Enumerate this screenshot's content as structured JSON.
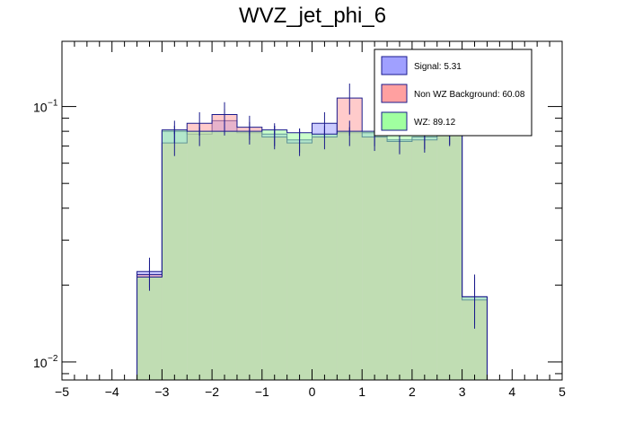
{
  "chart_data": {
    "type": "histogram",
    "title": "WVZ_jet_phi_6",
    "xlabel": "",
    "ylabel": "",
    "xlim": [
      -5,
      5
    ],
    "ylim": [
      0.0085,
      0.18
    ],
    "yscale": "log",
    "bin_edges": [
      -3.5,
      -3.0,
      -2.5,
      -2.0,
      -1.5,
      -1.0,
      -0.5,
      0.0,
      0.5,
      1.0,
      1.5,
      2.0,
      2.5,
      3.0,
      3.5
    ],
    "x_ticks": [
      -5,
      -4,
      -3,
      -2,
      -1,
      0,
      1,
      2,
      3,
      4,
      5
    ],
    "x_tick_labels": [
      "−5",
      "−4",
      "−3",
      "−2",
      "−1",
      "0",
      "1",
      "2",
      "3",
      "4",
      "5"
    ],
    "y_ticks": [
      {
        "value": 0.1,
        "base": "10",
        "exp": "−1"
      },
      {
        "value": 0.01,
        "base": "10",
        "exp": "−2"
      }
    ],
    "series": [
      {
        "name": "Signal",
        "legend_label": "Signal: 5.31",
        "color": "#a0a0ff",
        "edge": "#1818a0",
        "values": [
          0.0226,
          0.08,
          0.078,
          0.088,
          0.079,
          0.078,
          0.074,
          0.086,
          0.079,
          0.079,
          0.074,
          0.076,
          0.08,
          0.018
        ],
        "errors": [
          0.003,
          0.008,
          0.008,
          0.01,
          0.008,
          0.008,
          0.008,
          0.009,
          0.009,
          0.009,
          0.008,
          0.008,
          0.009,
          0.004
        ]
      },
      {
        "name": "Non WZ Background",
        "legend_label": "Non WZ Background: 60.08",
        "color": "#ffa0a0",
        "edge": "#c03030",
        "values": [
          0.022,
          0.072,
          0.086,
          0.093,
          0.083,
          0.076,
          0.072,
          0.076,
          0.108,
          0.076,
          0.073,
          0.074,
          0.079,
          0.0175
        ],
        "errors": [
          0.003,
          0.008,
          0.009,
          0.011,
          0.009,
          0.008,
          0.008,
          0.008,
          0.015,
          0.009,
          0.008,
          0.008,
          0.009,
          0.004
        ]
      },
      {
        "name": "WZ",
        "legend_label": "WZ: 89.12",
        "color": "#a0ffa0",
        "edge": "#20a020",
        "values": [
          0.0215,
          0.081,
          0.08,
          0.08,
          0.08,
          0.081,
          0.079,
          0.078,
          0.08,
          0.08,
          0.079,
          0.08,
          0.081,
          0.018
        ],
        "errors": [
          0.002,
          0.003,
          0.003,
          0.003,
          0.003,
          0.003,
          0.003,
          0.003,
          0.003,
          0.003,
          0.003,
          0.003,
          0.003,
          0.0015
        ]
      }
    ],
    "legend_position": "top-right"
  }
}
